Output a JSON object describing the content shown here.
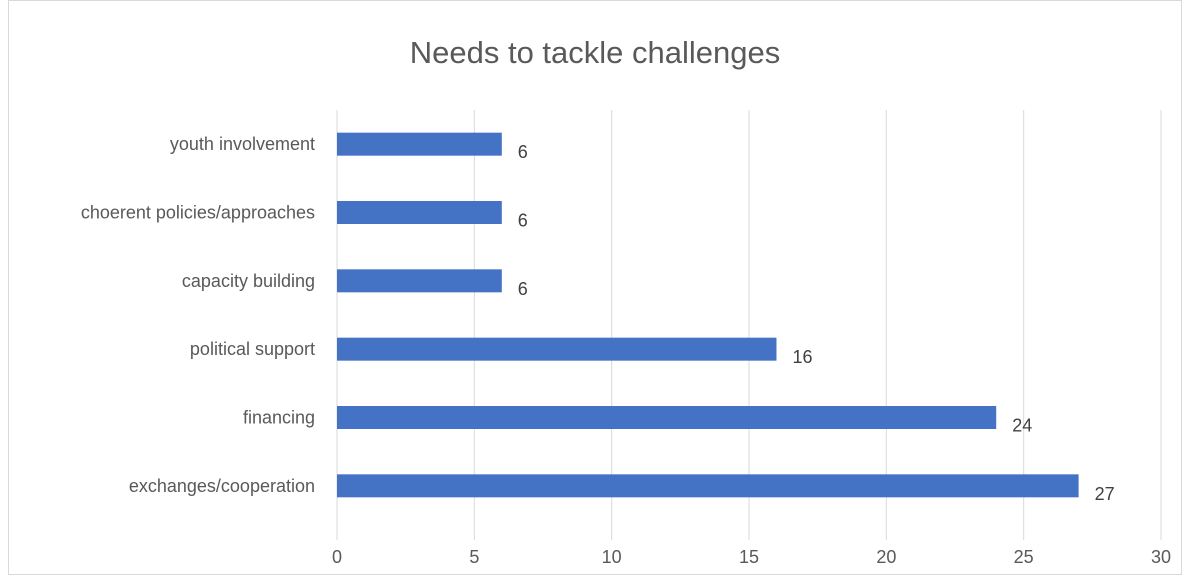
{
  "chart_data": {
    "type": "bar",
    "orientation": "horizontal",
    "title": "Needs to tackle challenges",
    "xlabel": "",
    "ylabel": "",
    "categories": [
      "youth involvement",
      "choerent policies/approaches",
      "capacity building",
      "political support",
      "financing",
      "exchanges/cooperation"
    ],
    "values": [
      6,
      6,
      6,
      16,
      24,
      27
    ],
    "xlim": [
      0,
      30
    ],
    "xticks": [
      "0",
      "5",
      "10",
      "15",
      "20",
      "25",
      "30"
    ],
    "grid": "vertical",
    "legend": "none",
    "data_labels": true,
    "colors": {
      "bar": "#4472c4",
      "grid": "#d9d9d9",
      "text": "#595959"
    }
  }
}
